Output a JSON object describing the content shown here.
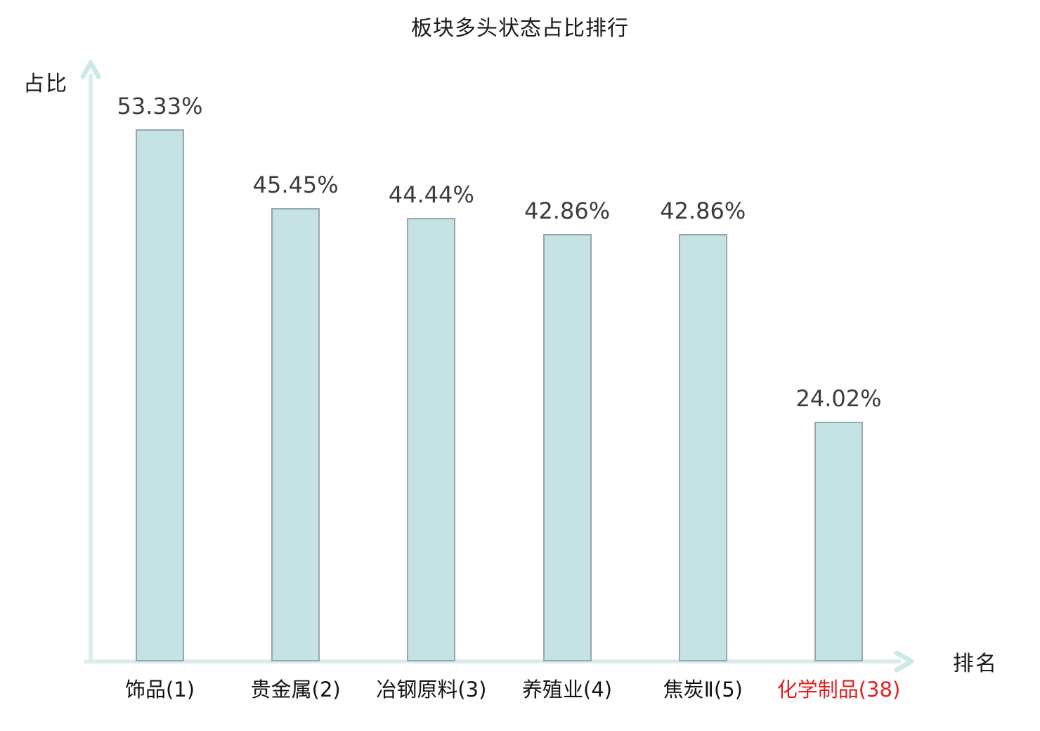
{
  "chart_data": {
    "type": "bar",
    "title": "板块多头状态占比排行",
    "ylabel": "占比",
    "xlabel": "排名",
    "categories": [
      "饰品(1)",
      "贵金属(2)",
      "冶钢原料(3)",
      "养殖业(4)",
      "焦炭Ⅱ(5)",
      "化学制品(38)"
    ],
    "values": [
      53.33,
      45.45,
      44.44,
      42.86,
      42.86,
      24.02
    ],
    "value_labels": [
      "53.33%",
      "45.45%",
      "44.44%",
      "42.86%",
      "42.86%",
      "24.02%"
    ],
    "highlight_index": 5,
    "highlight_color": "#e01f1f",
    "bar_fill": "#c5e2e5",
    "bar_border": "#97a7ab",
    "axis_color": "#d9edeb",
    "arrow_color": "#cde9e5",
    "ylim": [
      0,
      60
    ],
    "grid": false,
    "legend": null
  }
}
